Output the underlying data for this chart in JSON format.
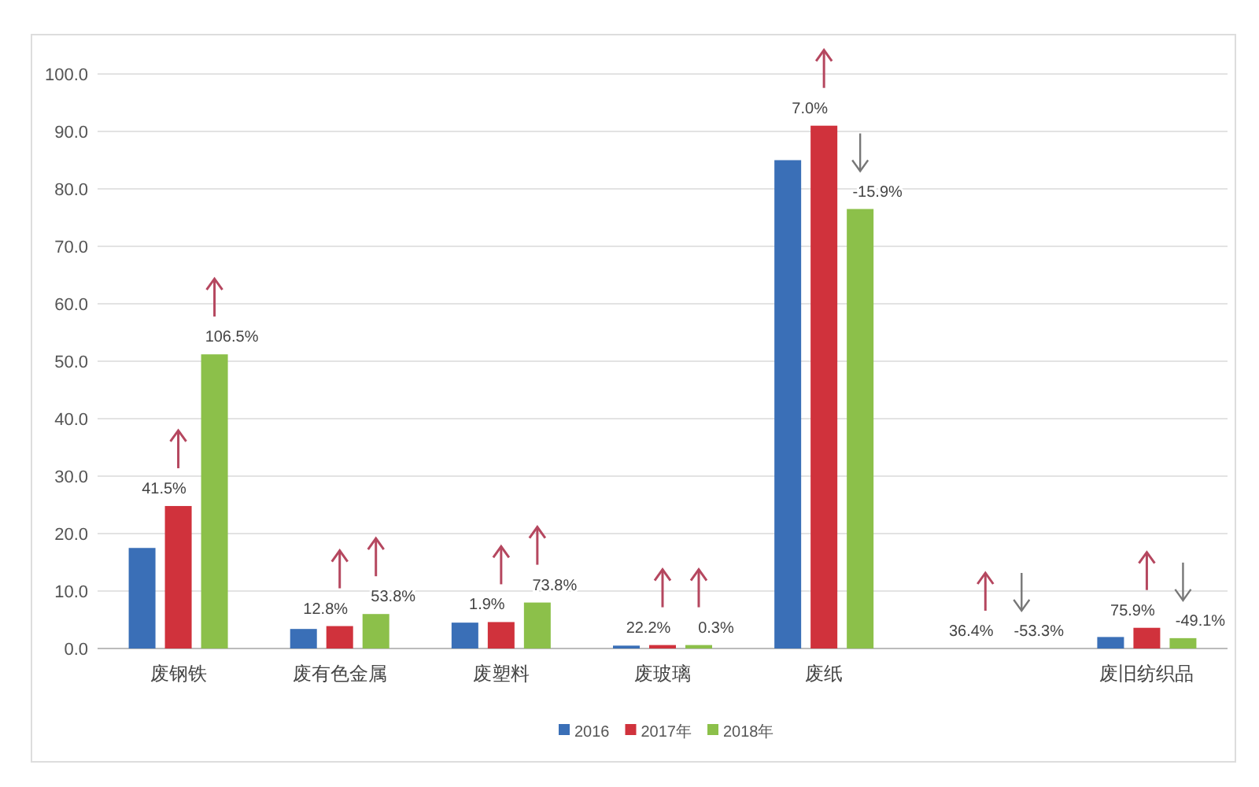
{
  "chart_data": {
    "type": "bar",
    "categories": [
      "废钢铁",
      "废有色金属",
      "废塑料",
      "废玻璃",
      "废纸",
      null,
      "废旧纺织品"
    ],
    "series": [
      {
        "name": "2016",
        "color": "#3a6fb7",
        "values": [
          17.5,
          3.4,
          4.5,
          0.5,
          85.0,
          null,
          2.0
        ]
      },
      {
        "name": "2017年",
        "color": "#d0323c",
        "values": [
          24.8,
          3.9,
          4.6,
          0.6,
          91.0,
          null,
          3.6
        ]
      },
      {
        "name": "2018年",
        "color": "#8cc04a",
        "values": [
          51.2,
          6.0,
          8.0,
          0.6,
          76.5,
          null,
          1.8
        ]
      }
    ],
    "ylim": [
      0,
      100
    ],
    "yticks": [
      {
        "value": 0,
        "label": "0.0"
      },
      {
        "value": 10,
        "label": "10.0"
      },
      {
        "value": 20,
        "label": "20.0"
      },
      {
        "value": 30,
        "label": "30.0"
      },
      {
        "value": 40,
        "label": "40.0"
      },
      {
        "value": 50,
        "label": "50.0"
      },
      {
        "value": 60,
        "label": "60.0"
      },
      {
        "value": 70,
        "label": "70.0"
      },
      {
        "value": 80,
        "label": "80.0"
      },
      {
        "value": 90,
        "label": "90.0"
      },
      {
        "value": 100,
        "label": "100.0"
      }
    ],
    "grid": "y",
    "legend": "bottom",
    "annotations": [
      "41.5%",
      "106.5%",
      "12.8%",
      "53.8%",
      "1.9%",
      "73.8%",
      "22.2%",
      "0.3%",
      "7.0%",
      "-15.9%",
      "36.4%",
      "-53.3%",
      "75.9%",
      "-49.1%"
    ]
  }
}
